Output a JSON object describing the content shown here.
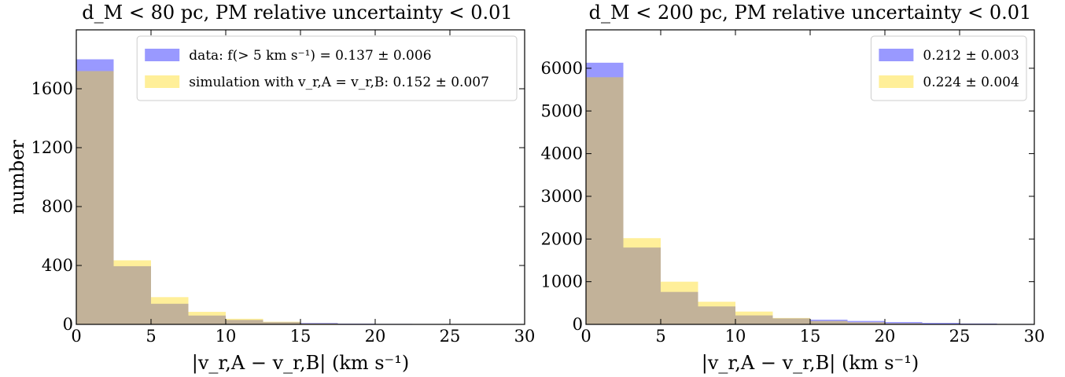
{
  "chart_data": [
    {
      "type": "bar",
      "title": "d_M < 80 pc, PM relative uncertainty < 0.01",
      "xlabel": "|v_r,A − v_r,B| (km s⁻¹)",
      "ylabel": "number",
      "xlim": [
        0,
        30
      ],
      "ylim": [
        0,
        2000
      ],
      "xticks": [
        0,
        5,
        10,
        15,
        20,
        25,
        30
      ],
      "yticks": [
        0,
        400,
        800,
        1200,
        1600
      ],
      "grid": false,
      "legend_position": "top-right",
      "bin_edges": [
        0,
        2.5,
        5,
        7.5,
        10,
        12.5,
        15,
        17.5,
        20,
        22.5,
        25,
        27.5,
        30
      ],
      "series": [
        {
          "name": "data: f(> 5 km s⁻¹) = 0.137 ± 0.006",
          "color": "#0000ff",
          "alpha": 0.4,
          "values": [
            1800,
            395,
            140,
            60,
            30,
            15,
            10,
            5,
            3,
            2,
            1,
            1
          ]
        },
        {
          "name": "simulation with v_r,A = v_r,B: 0.152 ± 0.007",
          "color": "#ffd700",
          "alpha": 0.4,
          "values": [
            1720,
            435,
            185,
            85,
            38,
            18,
            6,
            3,
            2,
            1,
            0,
            0
          ]
        }
      ]
    },
    {
      "type": "bar",
      "title": "d_M < 200 pc, PM relative uncertainty < 0.01",
      "xlabel": "|v_r,A − v_r,B| (km s⁻¹)",
      "ylabel": "",
      "xlim": [
        0,
        30
      ],
      "ylim": [
        0,
        6900
      ],
      "xticks": [
        0,
        5,
        10,
        15,
        20,
        25,
        30
      ],
      "yticks": [
        0,
        1000,
        2000,
        3000,
        4000,
        5000,
        6000
      ],
      "grid": false,
      "legend_position": "top-right",
      "bin_edges": [
        0,
        2.5,
        5,
        7.5,
        10,
        12.5,
        15,
        17.5,
        20,
        22.5,
        25,
        27.5,
        30
      ],
      "series": [
        {
          "name": "0.212 ± 0.003",
          "color": "#0000ff",
          "alpha": 0.4,
          "values": [
            6130,
            1800,
            760,
            420,
            210,
            140,
            110,
            80,
            55,
            35,
            20,
            10
          ]
        },
        {
          "name": "0.224 ± 0.004",
          "color": "#ffd700",
          "alpha": 0.4,
          "values": [
            5790,
            2020,
            1000,
            530,
            300,
            150,
            80,
            50,
            25,
            10,
            5,
            0
          ]
        }
      ]
    }
  ]
}
